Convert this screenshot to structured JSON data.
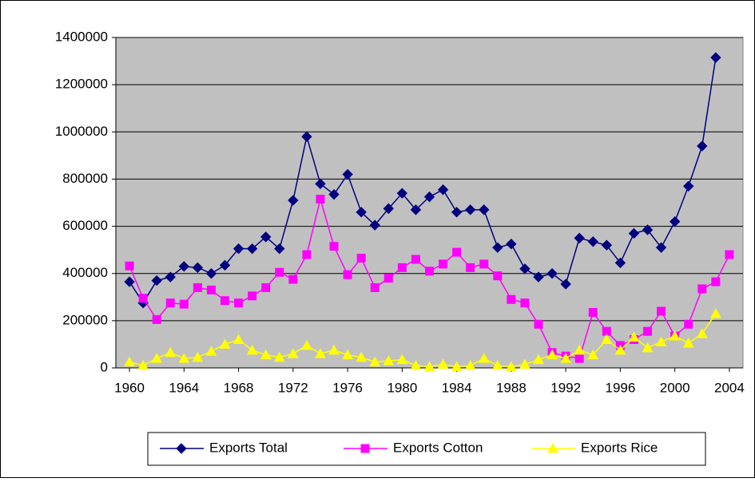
{
  "chart_data": {
    "type": "line",
    "x": [
      1960,
      1961,
      1962,
      1963,
      1964,
      1965,
      1966,
      1967,
      1968,
      1969,
      1970,
      1971,
      1972,
      1973,
      1974,
      1975,
      1976,
      1977,
      1978,
      1979,
      1980,
      1981,
      1982,
      1983,
      1984,
      1985,
      1986,
      1987,
      1988,
      1989,
      1990,
      1991,
      1992,
      1993,
      1994,
      1995,
      1996,
      1997,
      1998,
      1999,
      2000,
      2001,
      2002,
      2003,
      2004
    ],
    "series": [
      {
        "name": "Exports Total",
        "color": "#000080",
        "marker": "diamond",
        "values": [
          365000,
          275000,
          370000,
          385000,
          430000,
          425000,
          400000,
          435000,
          505000,
          505000,
          555000,
          505000,
          710000,
          980000,
          780000,
          735000,
          820000,
          660000,
          605000,
          675000,
          740000,
          670000,
          725000,
          755000,
          660000,
          670000,
          670000,
          510000,
          525000,
          420000,
          385000,
          400000,
          355000,
          550000,
          535000,
          520000,
          445000,
          570000,
          585000,
          510000,
          620000,
          770000,
          940000,
          1315000,
          null
        ]
      },
      {
        "name": "Exports Cotton",
        "color": "#ff00ff",
        "marker": "square",
        "values": [
          432000,
          295000,
          205000,
          275000,
          270000,
          340000,
          330000,
          285000,
          275000,
          305000,
          340000,
          405000,
          375000,
          480000,
          715000,
          515000,
          395000,
          465000,
          340000,
          380000,
          425000,
          460000,
          410000,
          440000,
          490000,
          425000,
          440000,
          390000,
          290000,
          275000,
          185000,
          65000,
          50000,
          40000,
          235000,
          155000,
          95000,
          120000,
          155000,
          240000,
          135000,
          185000,
          335000,
          365000,
          480000
        ]
      },
      {
        "name": "Exports Rice",
        "color": "#ffff00",
        "marker": "triangle",
        "values": [
          25000,
          10000,
          40000,
          65000,
          40000,
          45000,
          70000,
          100000,
          120000,
          75000,
          55000,
          45000,
          60000,
          95000,
          60000,
          75000,
          55000,
          45000,
          25000,
          30000,
          35000,
          10000,
          5000,
          15000,
          5000,
          10000,
          40000,
          10000,
          5000,
          15000,
          35000,
          55000,
          40000,
          75000,
          55000,
          120000,
          75000,
          130000,
          85000,
          110000,
          135000,
          105000,
          145000,
          230000,
          null
        ]
      }
    ],
    "xlim": [
      1959,
      2005
    ],
    "xticks": [
      1960,
      1964,
      1968,
      1972,
      1976,
      1980,
      1984,
      1988,
      1992,
      1996,
      2000,
      2004
    ],
    "ylim": [
      0,
      1400000
    ],
    "yticks": [
      0,
      200000,
      400000,
      600000,
      800000,
      1000000,
      1200000,
      1400000
    ],
    "grid": true,
    "legend": "bottom",
    "plot_background": "#c0c0c0"
  }
}
